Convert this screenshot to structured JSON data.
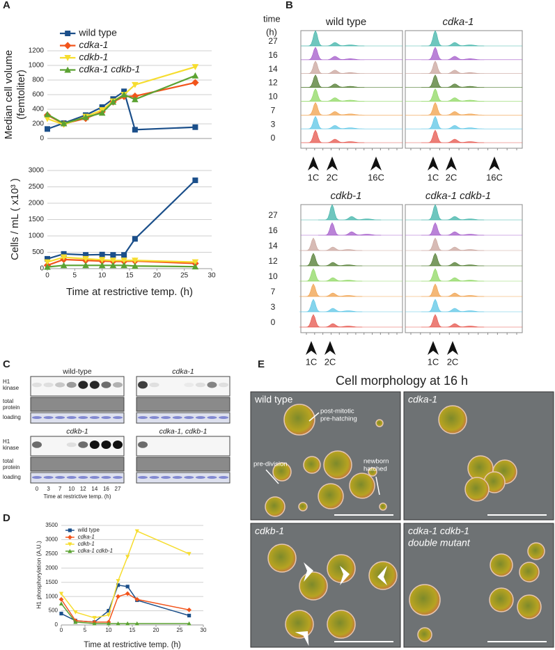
{
  "panel_labels": [
    "A",
    "B",
    "C",
    "D",
    "E"
  ],
  "chart_data": [
    {
      "type": "line",
      "x": [
        0,
        3,
        7,
        10,
        12,
        14,
        16,
        27
      ],
      "xlim": [
        0,
        30
      ],
      "ylim": [
        0,
        1200
      ],
      "yticks": [
        0,
        200,
        400,
        600,
        800,
        1000,
        1200
      ],
      "grid": true,
      "ylabel": [
        "Median cell volume",
        "(femtoliter)"
      ],
      "legend": "upper left",
      "series": [
        {
          "name": "wild type",
          "color": "#1b4f8a",
          "marker": "square",
          "values": [
            130,
            210,
            320,
            430,
            540,
            645,
            120,
            155
          ]
        },
        {
          "name": "cdka-1",
          "color": "#f2541b",
          "marker": "diamond",
          "values": [
            320,
            200,
            275,
            365,
            500,
            575,
            580,
            765
          ]
        },
        {
          "name": "cdkb-1",
          "color": "#f6dd2f",
          "marker": "triangle-down",
          "values": [
            270,
            190,
            300,
            390,
            510,
            600,
            735,
            980
          ]
        },
        {
          "name": "cdka-1 cdkb-1",
          "color": "#5ba232",
          "marker": "triangle-up",
          "values": [
            330,
            205,
            290,
            350,
            500,
            600,
            535,
            860
          ]
        }
      ]
    },
    {
      "type": "line",
      "x": [
        0,
        3,
        7,
        10,
        12,
        14,
        16,
        27
      ],
      "xlim": [
        0,
        30
      ],
      "xticks": [
        0,
        5,
        10,
        15,
        20,
        25,
        30
      ],
      "ylim": [
        0,
        3000
      ],
      "yticks": [
        0,
        500,
        1000,
        1500,
        2000,
        2500,
        3000
      ],
      "grid": true,
      "ylabel": [
        "Cells / mL ( x10³ )"
      ],
      "xlabel": "Time at restrictive temp. (h)",
      "series": [
        {
          "color": "#1b4f8a",
          "marker": "square",
          "values": [
            300,
            450,
            420,
            430,
            420,
            420,
            910,
            2700
          ]
        },
        {
          "color": "#f2541b",
          "marker": "diamond",
          "values": [
            100,
            280,
            250,
            230,
            220,
            220,
            230,
            160
          ]
        },
        {
          "color": "#f6dd2f",
          "marker": "triangle-down",
          "values": [
            200,
            350,
            300,
            270,
            250,
            250,
            250,
            200
          ]
        },
        {
          "color": "#5ba232",
          "marker": "triangle-up",
          "values": [
            50,
            100,
            100,
            100,
            100,
            100,
            80,
            60
          ]
        }
      ]
    },
    {
      "type": "line",
      "x": [
        0,
        3,
        7,
        10,
        12,
        14,
        16,
        27
      ],
      "xlim": [
        0,
        30
      ],
      "xticks": [
        0,
        5,
        10,
        15,
        20,
        25,
        30
      ],
      "ylim": [
        0,
        3500
      ],
      "yticks": [
        0,
        500,
        1000,
        1500,
        2000,
        2500,
        3000,
        3500
      ],
      "grid": true,
      "ylabel": [
        "H1 phosphorylation (A.U.)"
      ],
      "xlabel": "Time at restrictive temp. (h)",
      "legend": "upper left",
      "series": [
        {
          "name": "wild type",
          "color": "#1b4f8a",
          "marker": "square",
          "values": [
            400,
            150,
            100,
            500,
            1400,
            1350,
            870,
            330
          ]
        },
        {
          "name": "cdka-1",
          "color": "#f2541b",
          "marker": "diamond",
          "values": [
            900,
            150,
            100,
            100,
            1000,
            1100,
            900,
            530
          ]
        },
        {
          "name": "cdkb-1",
          "color": "#f6dd2f",
          "marker": "triangle-down",
          "values": [
            1100,
            450,
            250,
            350,
            1550,
            2400,
            3300,
            2500
          ]
        },
        {
          "name": "cdka-1 cdkb-1",
          "color": "#5ba232",
          "marker": "triangle-up",
          "values": [
            750,
            100,
            50,
            50,
            50,
            50,
            50,
            50
          ]
        }
      ]
    }
  ],
  "flow_cytometry": {
    "label": [
      "time",
      "(h)"
    ],
    "times": [
      27,
      16,
      14,
      12,
      10,
      7,
      3,
      0
    ],
    "panels": [
      {
        "title": "wild type",
        "markers": [
          "1C",
          "2C",
          "16C"
        ]
      },
      {
        "title": "cdka-1",
        "markers": [
          "1C",
          "2C",
          "16C"
        ]
      },
      {
        "title": "cdkb-1",
        "markers": [
          "1C",
          "2C"
        ]
      },
      {
        "title": "cdka-1 cdkb-1",
        "markers": [
          "1C",
          "2C"
        ]
      }
    ]
  },
  "blots": {
    "rows": [
      [
        "H1",
        "kinase"
      ],
      [
        "total",
        "protein"
      ],
      [
        "loading"
      ]
    ],
    "panels": [
      "wild-type",
      "cdka-1",
      "cdkb-1",
      "cdka-1, cdkb-1"
    ],
    "lanes": [
      0,
      3,
      7,
      10,
      12,
      14,
      16,
      27
    ],
    "xlabel": "Time at restrictive temp. (h)"
  },
  "morphology": {
    "title": "Cell morphology at 16 h",
    "panels": [
      {
        "label": [
          "wild type"
        ],
        "notes": [
          [
            "post-mitotic",
            "pre-hatching"
          ],
          [
            "pre-division"
          ],
          [
            "newborn",
            "hatched"
          ]
        ]
      },
      {
        "label": [
          "cdka-1"
        ]
      },
      {
        "label": [
          "cdkb-1"
        ]
      },
      {
        "label": [
          "cdka-1 cdkb-1",
          "double mutant"
        ]
      }
    ]
  }
}
